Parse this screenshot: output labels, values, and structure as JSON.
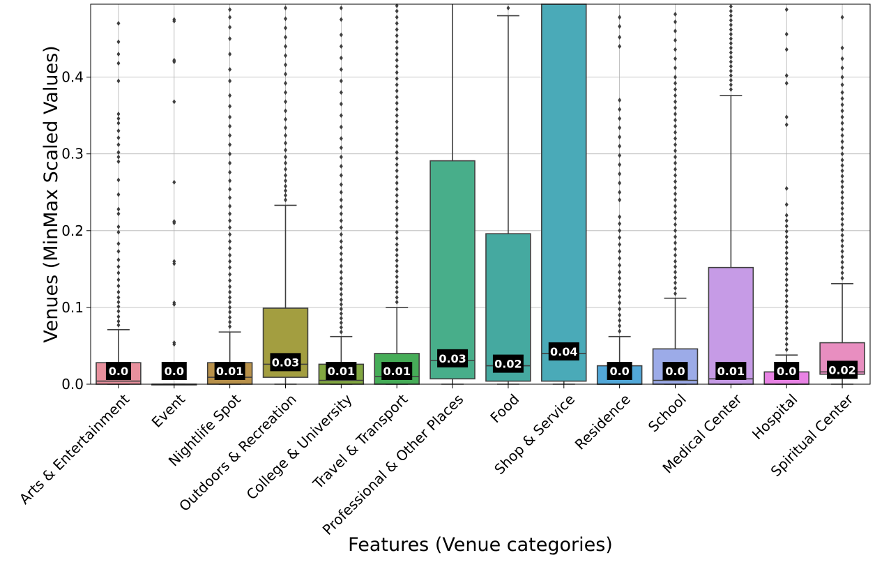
{
  "chart_data": {
    "type": "box",
    "xlabel": "Features (Venue categories)",
    "ylabel": "Venues (MinMax Scaled Values)",
    "ylim": [
      0,
      0.495
    ],
    "yticks": [
      0.0,
      0.1,
      0.2,
      0.3,
      0.4
    ],
    "ytick_labels": [
      "0.0",
      "0.1",
      "0.2",
      "0.3",
      "0.4"
    ],
    "grid": true,
    "categories": [
      "Arts & Entertainment",
      "Event",
      "Nightlife Spot",
      "Outdoors & Recreation",
      "College & University",
      "Travel & Transport",
      "Professional & Other Places",
      "Food",
      "Shop & Service",
      "Residence",
      "School",
      "Medical Center",
      "Hospital",
      "Spiritual Center"
    ],
    "colors": [
      "#e8909d",
      "#d4a07e",
      "#b8914a",
      "#a39e40",
      "#82a741",
      "#46ad58",
      "#48ae8a",
      "#45a9a0",
      "#4aaab8",
      "#52a8d9",
      "#9cabe8",
      "#c69be6",
      "#e883e4",
      "#e88ec0"
    ],
    "boxes": [
      {
        "q1": 0.0,
        "median": 0.004,
        "q3": 0.028,
        "whisker_low": 0.0,
        "whisker_high": 0.071,
        "label": "0.0",
        "outliers": [
          0.077,
          0.082,
          0.088,
          0.095,
          0.101,
          0.107,
          0.113,
          0.12,
          0.128,
          0.136,
          0.145,
          0.153,
          0.162,
          0.173,
          0.183,
          0.198,
          0.205,
          0.222,
          0.228,
          0.247,
          0.266,
          0.29,
          0.296,
          0.302,
          0.312,
          0.321,
          0.33,
          0.34,
          0.346,
          0.352,
          0.395,
          0.418,
          0.43,
          0.446,
          0.47
        ]
      },
      {
        "q1": 0.0,
        "median": 0.0,
        "q3": 0.0,
        "whisker_low": 0.0,
        "whisker_high": 0.0,
        "label": "0.0",
        "outliers": [
          0.052,
          0.054,
          0.104,
          0.106,
          0.157,
          0.16,
          0.21,
          0.212,
          0.263,
          0.368,
          0.42,
          0.422,
          0.473,
          0.475
        ]
      },
      {
        "q1": 0.0,
        "median": 0.009,
        "q3": 0.028,
        "whisker_low": 0.0,
        "whisker_high": 0.068,
        "label": "0.01",
        "outliers": [
          0.075,
          0.081,
          0.087,
          0.094,
          0.1,
          0.107,
          0.113,
          0.12,
          0.127,
          0.135,
          0.143,
          0.152,
          0.16,
          0.168,
          0.177,
          0.186,
          0.195,
          0.204,
          0.213,
          0.222,
          0.232,
          0.243,
          0.254,
          0.265,
          0.276,
          0.288,
          0.3,
          0.312,
          0.324,
          0.336,
          0.348,
          0.362,
          0.376,
          0.395,
          0.41,
          0.43,
          0.45,
          0.465,
          0.478,
          0.488
        ]
      },
      {
        "q1": 0.009,
        "median": 0.026,
        "q3": 0.099,
        "whisker_low": 0.0,
        "whisker_high": 0.233,
        "label": "0.03",
        "outliers": [
          0.24,
          0.246,
          0.252,
          0.258,
          0.265,
          0.272,
          0.28,
          0.288,
          0.296,
          0.305,
          0.314,
          0.324,
          0.334,
          0.345,
          0.356,
          0.368,
          0.38,
          0.392,
          0.404,
          0.416,
          0.428,
          0.44,
          0.452,
          0.464,
          0.476,
          0.49
        ]
      },
      {
        "q1": 0.0,
        "median": 0.005,
        "q3": 0.026,
        "whisker_low": 0.0,
        "whisker_high": 0.062,
        "label": "0.01",
        "outliers": [
          0.068,
          0.074,
          0.08,
          0.086,
          0.092,
          0.098,
          0.104,
          0.11,
          0.117,
          0.124,
          0.131,
          0.138,
          0.146,
          0.154,
          0.162,
          0.17,
          0.178,
          0.186,
          0.195,
          0.204,
          0.213,
          0.222,
          0.231,
          0.24,
          0.25,
          0.26,
          0.272,
          0.284,
          0.296,
          0.308,
          0.32,
          0.335,
          0.35,
          0.365,
          0.38,
          0.395,
          0.41,
          0.425,
          0.44,
          0.455,
          0.475,
          0.49
        ]
      },
      {
        "q1": 0.0,
        "median": 0.01,
        "q3": 0.04,
        "whisker_low": 0.0,
        "whisker_high": 0.1,
        "label": "0.01",
        "outliers": [
          0.107,
          0.113,
          0.12,
          0.126,
          0.133,
          0.14,
          0.147,
          0.154,
          0.161,
          0.168,
          0.175,
          0.182,
          0.19,
          0.198,
          0.206,
          0.214,
          0.222,
          0.23,
          0.238,
          0.246,
          0.254,
          0.262,
          0.27,
          0.278,
          0.286,
          0.294,
          0.302,
          0.31,
          0.318,
          0.326,
          0.334,
          0.342,
          0.35,
          0.358,
          0.366,
          0.374,
          0.382,
          0.39,
          0.398,
          0.406,
          0.414,
          0.422,
          0.43,
          0.438,
          0.446,
          0.454,
          0.462,
          0.47,
          0.478,
          0.486,
          0.493
        ]
      },
      {
        "q1": 0.007,
        "median": 0.031,
        "q3": 0.291,
        "whisker_low": 0.0,
        "whisker_high": 0.495,
        "label": "0.03",
        "outliers": []
      },
      {
        "q1": 0.004,
        "median": 0.024,
        "q3": 0.196,
        "whisker_low": 0.0,
        "whisker_high": 0.48,
        "label": "0.02",
        "outliers": [
          0.49
        ]
      },
      {
        "q1": 0.004,
        "median": 0.04,
        "q3": 0.495,
        "whisker_low": 0.0,
        "whisker_high": 0.495,
        "label": "0.04",
        "outliers": []
      },
      {
        "q1": 0.0,
        "median": 0.0,
        "q3": 0.024,
        "whisker_low": 0.0,
        "whisker_high": 0.062,
        "label": "0.0",
        "outliers": [
          0.069,
          0.076,
          0.083,
          0.09,
          0.098,
          0.106,
          0.114,
          0.122,
          0.13,
          0.138,
          0.146,
          0.155,
          0.164,
          0.173,
          0.182,
          0.191,
          0.2,
          0.209,
          0.218,
          0.24,
          0.25,
          0.262,
          0.274,
          0.286,
          0.298,
          0.31,
          0.322,
          0.334,
          0.346,
          0.358,
          0.37,
          0.44,
          0.452,
          0.466,
          0.478
        ]
      },
      {
        "q1": 0.0,
        "median": 0.005,
        "q3": 0.046,
        "whisker_low": 0.0,
        "whisker_high": 0.112,
        "label": "0.0",
        "outliers": [
          0.118,
          0.125,
          0.132,
          0.139,
          0.146,
          0.153,
          0.16,
          0.168,
          0.176,
          0.184,
          0.192,
          0.2,
          0.208,
          0.216,
          0.224,
          0.232,
          0.24,
          0.248,
          0.256,
          0.264,
          0.272,
          0.28,
          0.288,
          0.296,
          0.304,
          0.312,
          0.32,
          0.328,
          0.336,
          0.344,
          0.352,
          0.36,
          0.368,
          0.376,
          0.384,
          0.392,
          0.4,
          0.412,
          0.424,
          0.436,
          0.448,
          0.46,
          0.472,
          0.482
        ]
      },
      {
        "q1": 0.0,
        "median": 0.007,
        "q3": 0.152,
        "whisker_low": 0.0,
        "whisker_high": 0.376,
        "label": "0.01",
        "outliers": [
          0.384,
          0.39,
          0.396,
          0.402,
          0.408,
          0.414,
          0.42,
          0.426,
          0.432,
          0.438,
          0.444,
          0.45,
          0.456,
          0.462,
          0.468,
          0.474,
          0.48,
          0.486,
          0.492
        ]
      },
      {
        "q1": 0.0,
        "median": 0.0,
        "q3": 0.016,
        "whisker_low": 0.0,
        "whisker_high": 0.038,
        "label": "0.0",
        "outliers": [
          0.045,
          0.052,
          0.059,
          0.066,
          0.073,
          0.08,
          0.087,
          0.094,
          0.101,
          0.108,
          0.115,
          0.122,
          0.129,
          0.136,
          0.143,
          0.15,
          0.157,
          0.164,
          0.171,
          0.178,
          0.185,
          0.192,
          0.199,
          0.206,
          0.213,
          0.22,
          0.234,
          0.255,
          0.338,
          0.348,
          0.392,
          0.402,
          0.436,
          0.456,
          0.488
        ]
      },
      {
        "q1": 0.013,
        "median": 0.016,
        "q3": 0.054,
        "whisker_low": 0.0,
        "whisker_high": 0.131,
        "label": "0.02",
        "outliers": [
          0.138,
          0.145,
          0.152,
          0.159,
          0.166,
          0.173,
          0.18,
          0.187,
          0.194,
          0.201,
          0.208,
          0.215,
          0.222,
          0.229,
          0.236,
          0.243,
          0.25,
          0.257,
          0.264,
          0.271,
          0.278,
          0.285,
          0.292,
          0.3,
          0.308,
          0.316,
          0.324,
          0.332,
          0.34,
          0.348,
          0.356,
          0.364,
          0.372,
          0.38,
          0.39,
          0.4,
          0.412,
          0.424,
          0.438,
          0.478
        ]
      }
    ]
  }
}
